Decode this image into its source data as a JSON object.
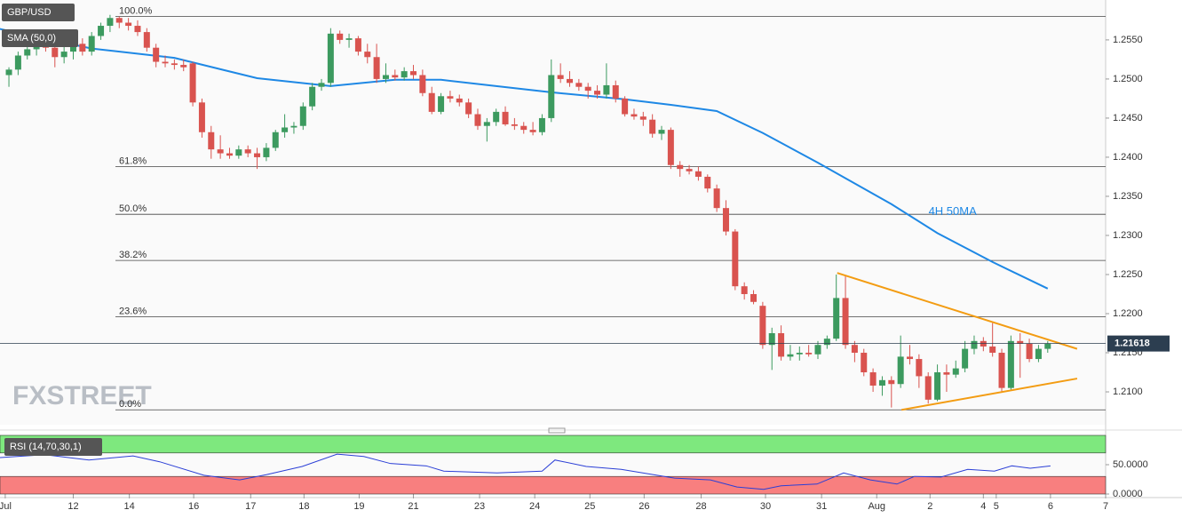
{
  "chart_data": [
    {
      "type": "candlestick",
      "title": "GBP/USD",
      "indicator_label": "SMA (50,0)",
      "watermark": "FXSTREET",
      "up_color": "#3c9a5f",
      "down_color": "#d9534f",
      "xlim": [
        -0.97,
        119.3
      ],
      "xticks": [
        {
          "value": -0.4,
          "label": "Jul"
        },
        {
          "value": 7,
          "label": "12"
        },
        {
          "value": 13.1,
          "label": "14"
        },
        {
          "value": 20.1,
          "label": "16"
        },
        {
          "value": 26.3,
          "label": "17"
        },
        {
          "value": 32.1,
          "label": "18"
        },
        {
          "value": 38.1,
          "label": "19"
        },
        {
          "value": 44,
          "label": "21"
        },
        {
          "value": 51.2,
          "label": "23"
        },
        {
          "value": 57.2,
          "label": "24"
        },
        {
          "value": 63.2,
          "label": "25"
        },
        {
          "value": 69.1,
          "label": "26"
        },
        {
          "value": 75.3,
          "label": "28"
        },
        {
          "value": 82.3,
          "label": "30"
        },
        {
          "value": 88.4,
          "label": "31"
        },
        {
          "value": 94.4,
          "label": "Aug"
        },
        {
          "value": 100.2,
          "label": "2"
        },
        {
          "value": 106,
          "label": "4"
        },
        {
          "value": 107.4,
          "label": "5"
        },
        {
          "value": 113.3,
          "label": "6"
        },
        {
          "value": 119.3,
          "label": "7"
        }
      ],
      "ylim": [
        1.2058,
        1.2601
      ],
      "yticks": [
        {
          "value": 1.255,
          "label": "1.2550"
        },
        {
          "value": 1.25,
          "label": "1.2500"
        },
        {
          "value": 1.245,
          "label": "1.2450"
        },
        {
          "value": 1.24,
          "label": "1.2400"
        },
        {
          "value": 1.235,
          "label": "1.2350"
        },
        {
          "value": 1.23,
          "label": "1.2300"
        },
        {
          "value": 1.225,
          "label": "1.2250"
        },
        {
          "value": 1.22,
          "label": "1.2200"
        },
        {
          "value": 1.215,
          "label": "1.2150"
        },
        {
          "value": 1.21,
          "label": "1.2100"
        }
      ],
      "open": [
        1.2505,
        1.2512,
        1.253,
        1.2538,
        1.2548,
        1.254,
        1.2528,
        1.2535,
        1.2545,
        1.2535,
        1.2555,
        1.2568,
        1.2578,
        1.2572,
        1.2568,
        1.256,
        1.254,
        1.2522,
        1.252,
        1.2518,
        1.252,
        1.247,
        1.2432,
        1.241,
        1.2405,
        1.2402,
        1.241,
        1.2405,
        1.24,
        1.2412,
        1.2432,
        1.2438,
        1.244,
        1.2465,
        1.249,
        1.2495,
        1.2558,
        1.255,
        1.2552,
        1.2535,
        1.2528,
        1.25,
        1.2505,
        1.2502,
        1.251,
        1.2505,
        1.2482,
        1.2458,
        1.2478,
        1.2475,
        1.247,
        1.2455,
        1.244,
        1.2445,
        1.2458,
        1.2442,
        1.244,
        1.2435,
        1.2432,
        1.245,
        1.2505,
        1.25,
        1.2495,
        1.249,
        1.2485,
        1.248,
        1.2492,
        1.2475,
        1.2455,
        1.2452,
        1.2448,
        1.243,
        1.2435,
        1.239,
        1.2385,
        1.2382,
        1.2375,
        1.236,
        1.2335,
        1.2305,
        1.2235,
        1.2225,
        1.221,
        1.216,
        1.2175,
        1.2145,
        1.2148,
        1.215,
        1.2148,
        1.216,
        1.2168,
        1.222,
        1.216,
        1.215,
        1.2125,
        1.2108,
        1.2115,
        1.211,
        1.2145,
        1.2142,
        1.212,
        1.209,
        1.2125,
        1.2122,
        1.213,
        1.2155,
        1.2165,
        1.2158,
        1.215,
        1.2105,
        1.2165,
        1.2162,
        1.2142,
        1.2155
      ],
      "high": [
        1.2515,
        1.2535,
        1.2545,
        1.2555,
        1.256,
        1.2552,
        1.2545,
        1.2555,
        1.2552,
        1.256,
        1.2572,
        1.2582,
        1.258,
        1.2578,
        1.2575,
        1.2565,
        1.2545,
        1.253,
        1.2525,
        1.2525,
        1.2522,
        1.2475,
        1.244,
        1.2428,
        1.2412,
        1.2415,
        1.2415,
        1.2412,
        1.2418,
        1.2435,
        1.2455,
        1.2445,
        1.247,
        1.2495,
        1.25,
        1.2565,
        1.2562,
        1.2558,
        1.2555,
        1.2545,
        1.2545,
        1.252,
        1.2512,
        1.2515,
        1.2518,
        1.2512,
        1.249,
        1.2482,
        1.2485,
        1.248,
        1.2475,
        1.2462,
        1.245,
        1.2462,
        1.2465,
        1.245,
        1.2445,
        1.2445,
        1.2455,
        1.2525,
        1.252,
        1.251,
        1.25,
        1.2495,
        1.2492,
        1.252,
        1.2498,
        1.2478,
        1.2462,
        1.2458,
        1.2455,
        1.244,
        1.2438,
        1.2395,
        1.239,
        1.2388,
        1.2378,
        1.2365,
        1.2345,
        1.2308,
        1.224,
        1.223,
        1.2215,
        1.2182,
        1.2185,
        1.216,
        1.2158,
        1.216,
        1.2165,
        1.2172,
        1.225,
        1.2248,
        1.2165,
        1.2155,
        1.213,
        1.212,
        1.212,
        1.2172,
        1.216,
        1.2148,
        1.2125,
        1.2135,
        1.2135,
        1.214,
        1.2165,
        1.2172,
        1.217,
        1.2188,
        1.2155,
        1.2172,
        1.2175,
        1.2168,
        1.216,
        1.2165
      ],
      "low": [
        1.249,
        1.2505,
        1.2525,
        1.253,
        1.2535,
        1.2515,
        1.252,
        1.2525,
        1.253,
        1.253,
        1.255,
        1.256,
        1.2565,
        1.2562,
        1.2555,
        1.2535,
        1.2515,
        1.2515,
        1.2512,
        1.251,
        1.2465,
        1.2425,
        1.2398,
        1.2398,
        1.2398,
        1.2398,
        1.24,
        1.2385,
        1.2395,
        1.2408,
        1.2425,
        1.243,
        1.2435,
        1.246,
        1.2485,
        1.249,
        1.2545,
        1.254,
        1.253,
        1.252,
        1.2495,
        1.2495,
        1.2498,
        1.2498,
        1.25,
        1.2478,
        1.2455,
        1.2455,
        1.247,
        1.2465,
        1.245,
        1.2435,
        1.242,
        1.244,
        1.244,
        1.2435,
        1.243,
        1.2428,
        1.2428,
        1.2445,
        1.2495,
        1.249,
        1.2485,
        1.2475,
        1.2475,
        1.2475,
        1.247,
        1.2452,
        1.2448,
        1.244,
        1.2425,
        1.2422,
        1.2385,
        1.2375,
        1.2378,
        1.237,
        1.2355,
        1.233,
        1.23,
        1.223,
        1.2218,
        1.2212,
        1.2155,
        1.2128,
        1.214,
        1.214,
        1.214,
        1.2145,
        1.2142,
        1.2155,
        1.2165,
        1.2155,
        1.2138,
        1.212,
        1.21,
        1.2095,
        1.208,
        1.2105,
        1.2135,
        1.2105,
        1.2085,
        1.2088,
        1.21,
        1.2118,
        1.2125,
        1.2148,
        1.2152,
        1.2145,
        1.21,
        1.2102,
        1.2118,
        1.2138,
        1.2138,
        1.215
      ],
      "close": [
        1.2512,
        1.253,
        1.2538,
        1.2548,
        1.254,
        1.2528,
        1.2535,
        1.2545,
        1.2535,
        1.2555,
        1.2568,
        1.2578,
        1.2572,
        1.2568,
        1.256,
        1.254,
        1.2522,
        1.252,
        1.2518,
        1.2515,
        1.247,
        1.2432,
        1.241,
        1.2405,
        1.2402,
        1.241,
        1.2405,
        1.24,
        1.2412,
        1.2432,
        1.2438,
        1.244,
        1.2465,
        1.249,
        1.2495,
        1.2558,
        1.255,
        1.2552,
        1.2535,
        1.2528,
        1.25,
        1.2505,
        1.2502,
        1.251,
        1.2505,
        1.2482,
        1.2458,
        1.2478,
        1.2475,
        1.247,
        1.2455,
        1.244,
        1.2445,
        1.2458,
        1.2442,
        1.244,
        1.2435,
        1.2432,
        1.245,
        1.2505,
        1.25,
        1.2495,
        1.249,
        1.2485,
        1.248,
        1.2492,
        1.2475,
        1.2455,
        1.2452,
        1.2448,
        1.243,
        1.2435,
        1.239,
        1.2385,
        1.2382,
        1.2375,
        1.236,
        1.2335,
        1.2305,
        1.2235,
        1.2225,
        1.2215,
        1.216,
        1.2175,
        1.2145,
        1.2148,
        1.215,
        1.2148,
        1.216,
        1.2168,
        1.222,
        1.216,
        1.215,
        1.2125,
        1.2108,
        1.2115,
        1.211,
        1.2145,
        1.2142,
        1.212,
        1.209,
        1.2125,
        1.2122,
        1.213,
        1.2155,
        1.2165,
        1.2158,
        1.215,
        1.2105,
        1.2165,
        1.2162,
        1.2142,
        1.2155,
        1.2162
      ],
      "sma": {
        "label": "4H 50MA",
        "color": "#1e88e5",
        "x": [
          -1,
          9,
          18,
          27,
          35,
          42,
          47,
          53,
          59,
          67,
          72,
          77,
          82,
          88,
          96,
          101,
          107,
          113
        ],
        "values": [
          1.2564,
          1.2539,
          1.2527,
          1.2501,
          1.2491,
          1.2499,
          1.2499,
          1.2491,
          1.2483,
          1.2474,
          1.2467,
          1.2459,
          1.2431,
          1.2393,
          1.234,
          1.2303,
          1.2266,
          1.2232
        ]
      },
      "fib_levels": [
        {
          "label": "100.0%",
          "price": 1.258
        },
        {
          "label": "61.8%",
          "price": 1.2388
        },
        {
          "label": "50.0%",
          "price": 1.2327
        },
        {
          "label": "38.2%",
          "price": 1.2268
        },
        {
          "label": "23.6%",
          "price": 1.2196
        },
        {
          "label": "0.0%",
          "price": 1.2077
        }
      ],
      "trendlines": [
        {
          "color": "#f39c12",
          "x": [
            90.1,
            116.2
          ],
          "values": [
            1.2252,
            1.2155
          ]
        },
        {
          "color": "#f39c12",
          "x": [
            97.1,
            116.2
          ],
          "values": [
            1.2077,
            1.2117
          ]
        }
      ],
      "last_price": 1.21618
    },
    {
      "type": "line",
      "title": "RSI (14,70,30,1)",
      "color": "#2b3fd6",
      "xlim": [
        -0.97,
        119.3
      ],
      "ylim": [
        0,
        100
      ],
      "yticks": [
        {
          "value": 0,
          "label": "0.0000"
        },
        {
          "value": 50,
          "label": "50.0000"
        }
      ],
      "bands": [
        {
          "from": 70,
          "to": 100,
          "color": "#7ee87e"
        },
        {
          "from": 0,
          "to": 30,
          "color": "#f87f7f"
        }
      ],
      "x": [
        -1,
        3.9,
        8.7,
        13.5,
        16.4,
        21.2,
        25.1,
        28,
        31.9,
        35.7,
        38.6,
        41.5,
        45.4,
        47.3,
        53.1,
        58,
        59.4,
        62.8,
        66.6,
        72.4,
        76.3,
        79.2,
        82.1,
        84,
        87.9,
        90.8,
        93.7,
        96.6,
        98.5,
        101.4,
        104.3,
        107.2,
        109.1,
        111.1,
        113.3
      ],
      "values": [
        62,
        67,
        58,
        65,
        55,
        32,
        24,
        33,
        47,
        68,
        64,
        52,
        48,
        39,
        36,
        39,
        58,
        47,
        42,
        27,
        24,
        12,
        8,
        14,
        17,
        36,
        24,
        17,
        30,
        29,
        42,
        39,
        48,
        44,
        48
      ]
    }
  ]
}
